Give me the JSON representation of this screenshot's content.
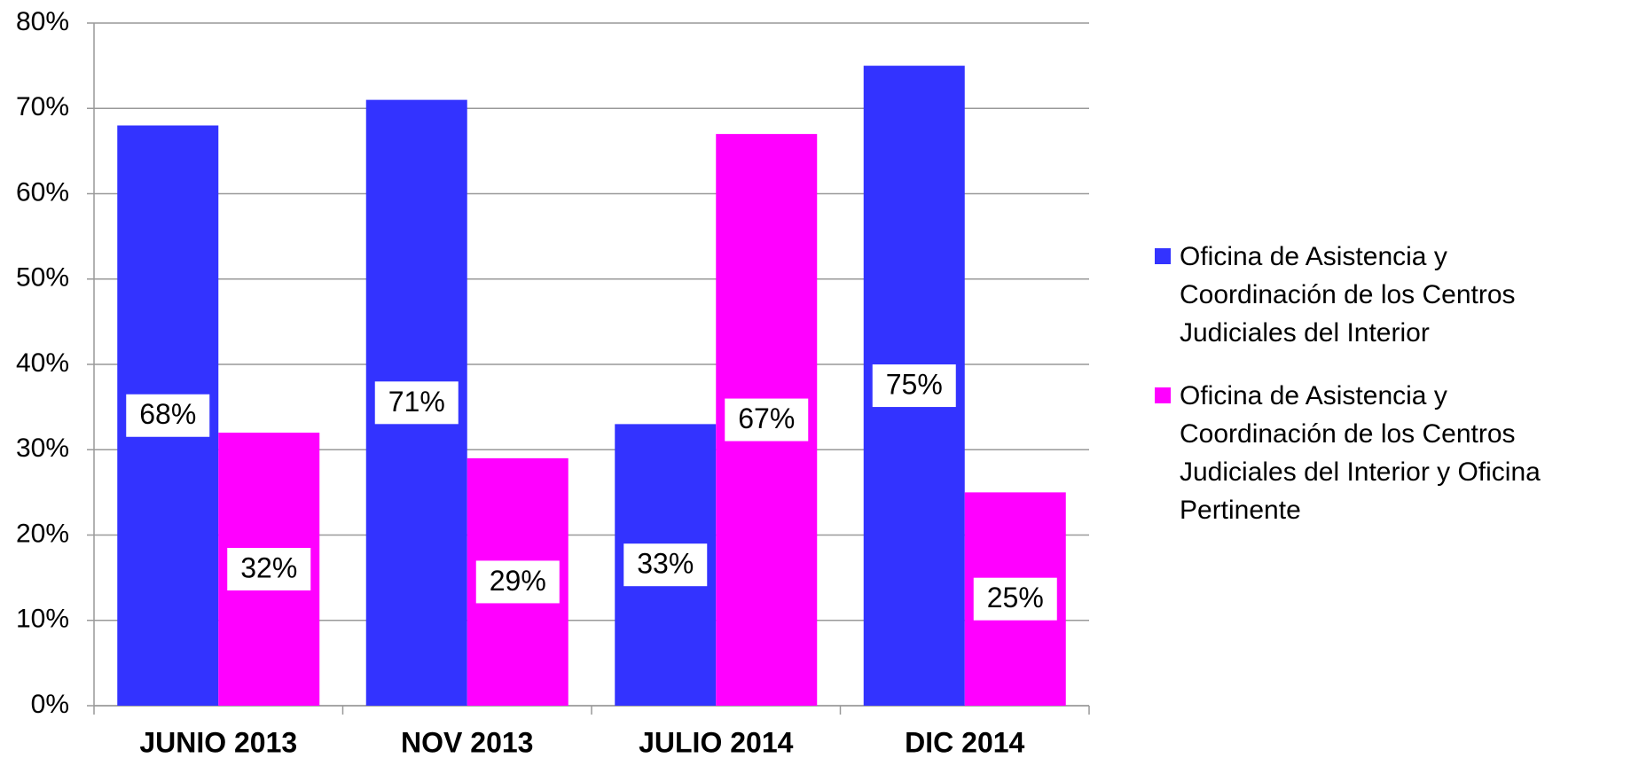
{
  "chart_data": {
    "type": "bar",
    "categories": [
      "JUNIO 2013",
      "NOV 2013",
      "JULIO 2014",
      "DIC 2014"
    ],
    "series": [
      {
        "name": "Oficina de Asistencia y Coordinación de los Centros Judiciales del Interior",
        "color": "#3333ff",
        "values": [
          68,
          71,
          33,
          75
        ],
        "value_labels": [
          "68%",
          "71%",
          "33%",
          "75%"
        ]
      },
      {
        "name": "Oficina de Asistencia y Coordinación de los Centros Judiciales del Interior y Oficina Pertinente",
        "color": "#ff00ff",
        "values": [
          32,
          29,
          67,
          25
        ],
        "value_labels": [
          "32%",
          "29%",
          "67%",
          "25%"
        ]
      }
    ],
    "ylim": [
      0,
      80
    ],
    "yticks": [
      {
        "value": 0,
        "label": "0%"
      },
      {
        "value": 10,
        "label": "10%"
      },
      {
        "value": 20,
        "label": "20%"
      },
      {
        "value": 30,
        "label": "30%"
      },
      {
        "value": 40,
        "label": "40%"
      },
      {
        "value": 50,
        "label": "50%"
      },
      {
        "value": 60,
        "label": "60%"
      },
      {
        "value": 70,
        "label": "70%"
      },
      {
        "value": 80,
        "label": "80%"
      }
    ],
    "grid": true,
    "legend": "right"
  }
}
